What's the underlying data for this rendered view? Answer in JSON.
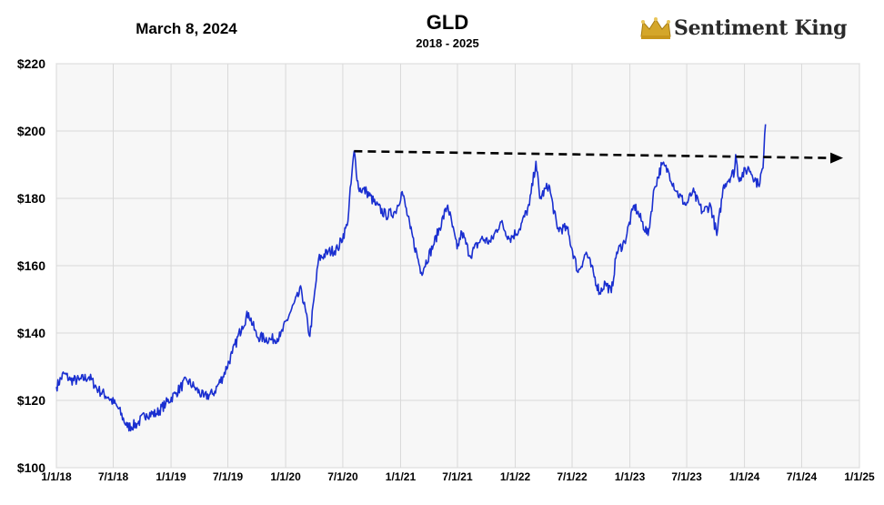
{
  "header": {
    "date": "March 8, 2024",
    "title": "GLD",
    "subtitle": "2018 - 2025",
    "brand": "Sentiment King"
  },
  "colors": {
    "line": "#1a2fd0",
    "grid": "#d9d9d9",
    "plot_bg": "#f7f7f7",
    "trend": "#000000",
    "crown": "#d4a62a"
  },
  "chart_data": {
    "type": "line",
    "ylim": [
      100,
      220
    ],
    "y_ticks": [
      100,
      120,
      140,
      160,
      180,
      200,
      220
    ],
    "y_tick_labels": [
      "$100",
      "$120",
      "$140",
      "$160",
      "$180",
      "$200",
      "$220"
    ],
    "x_range": [
      "2018-01-01",
      "2025-01-01"
    ],
    "x_ticks": [
      "2018-01-01",
      "2018-07-01",
      "2019-01-01",
      "2019-07-01",
      "2020-01-01",
      "2020-07-01",
      "2021-01-01",
      "2021-07-01",
      "2022-01-01",
      "2022-07-01",
      "2023-01-01",
      "2023-07-01",
      "2024-01-01",
      "2024-07-01",
      "2025-01-01"
    ],
    "x_tick_labels": [
      "1/1/18",
      "7/1/18",
      "1/1/19",
      "7/1/19",
      "1/1/20",
      "7/1/20",
      "1/1/21",
      "7/1/21",
      "1/1/22",
      "7/1/22",
      "1/1/23",
      "7/1/23",
      "1/1/24",
      "7/1/24",
      "1/1/25"
    ],
    "grid": true,
    "series": [
      {
        "points": [
          [
            "2018-01-01",
            124
          ],
          [
            "2018-01-25",
            128
          ],
          [
            "2018-02-15",
            126
          ],
          [
            "2018-03-15",
            126
          ],
          [
            "2018-04-15",
            127
          ],
          [
            "2018-05-15",
            123
          ],
          [
            "2018-06-15",
            121
          ],
          [
            "2018-07-15",
            118
          ],
          [
            "2018-08-15",
            112
          ],
          [
            "2018-09-15",
            113
          ],
          [
            "2018-10-15",
            116
          ],
          [
            "2018-11-15",
            116
          ],
          [
            "2018-12-15",
            119
          ],
          [
            "2019-01-15",
            122
          ],
          [
            "2019-02-20",
            126
          ],
          [
            "2019-03-15",
            124
          ],
          [
            "2019-04-15",
            121
          ],
          [
            "2019-05-15",
            122
          ],
          [
            "2019-06-15",
            127
          ],
          [
            "2019-07-15",
            134
          ],
          [
            "2019-08-15",
            142
          ],
          [
            "2019-09-05",
            146
          ],
          [
            "2019-10-01",
            139
          ],
          [
            "2019-11-15",
            138
          ],
          [
            "2019-12-15",
            139
          ],
          [
            "2020-01-15",
            146
          ],
          [
            "2020-02-20",
            153
          ],
          [
            "2020-03-18",
            139
          ],
          [
            "2020-04-15",
            162
          ],
          [
            "2020-05-15",
            164
          ],
          [
            "2020-06-15",
            165
          ],
          [
            "2020-07-15",
            172
          ],
          [
            "2020-08-06",
            194
          ],
          [
            "2020-08-20",
            183
          ],
          [
            "2020-09-15",
            182
          ],
          [
            "2020-10-15",
            178
          ],
          [
            "2020-11-15",
            175
          ],
          [
            "2020-12-15",
            176
          ],
          [
            "2021-01-06",
            182
          ],
          [
            "2021-02-01",
            171
          ],
          [
            "2021-03-08",
            158
          ],
          [
            "2021-04-15",
            166
          ],
          [
            "2021-05-31",
            178
          ],
          [
            "2021-06-30",
            165
          ],
          [
            "2021-07-15",
            170
          ],
          [
            "2021-08-10",
            163
          ],
          [
            "2021-09-15",
            168
          ],
          [
            "2021-10-15",
            167
          ],
          [
            "2021-11-15",
            173
          ],
          [
            "2021-12-15",
            168
          ],
          [
            "2022-01-15",
            171
          ],
          [
            "2022-02-15",
            178
          ],
          [
            "2022-03-08",
            191
          ],
          [
            "2022-03-20",
            180
          ],
          [
            "2022-04-18",
            184
          ],
          [
            "2022-05-15",
            171
          ],
          [
            "2022-06-15",
            171
          ],
          [
            "2022-07-20",
            158
          ],
          [
            "2022-08-15",
            164
          ],
          [
            "2022-09-27",
            152
          ],
          [
            "2022-10-15",
            155
          ],
          [
            "2022-11-03",
            152
          ],
          [
            "2022-11-20",
            164
          ],
          [
            "2022-12-15",
            167
          ],
          [
            "2023-01-15",
            178
          ],
          [
            "2023-02-28",
            169
          ],
          [
            "2023-03-20",
            183
          ],
          [
            "2023-04-13",
            190
          ],
          [
            "2023-05-04",
            188
          ],
          [
            "2023-05-30",
            182
          ],
          [
            "2023-06-29",
            178
          ],
          [
            "2023-07-20",
            182
          ],
          [
            "2023-08-20",
            176
          ],
          [
            "2023-09-15",
            178
          ],
          [
            "2023-10-05",
            169
          ],
          [
            "2023-10-27",
            184
          ],
          [
            "2023-11-30",
            188
          ],
          [
            "2023-12-04",
            193
          ],
          [
            "2023-12-13",
            186
          ],
          [
            "2024-01-15",
            189
          ],
          [
            "2024-02-14",
            184
          ],
          [
            "2024-02-29",
            189
          ],
          [
            "2024-03-08",
            202
          ]
        ]
      }
    ],
    "annotations": [
      {
        "type": "arrow",
        "style": "dashed",
        "from": [
          "2020-08-06",
          194
        ],
        "to": [
          "2024-11-10",
          192
        ]
      }
    ]
  }
}
